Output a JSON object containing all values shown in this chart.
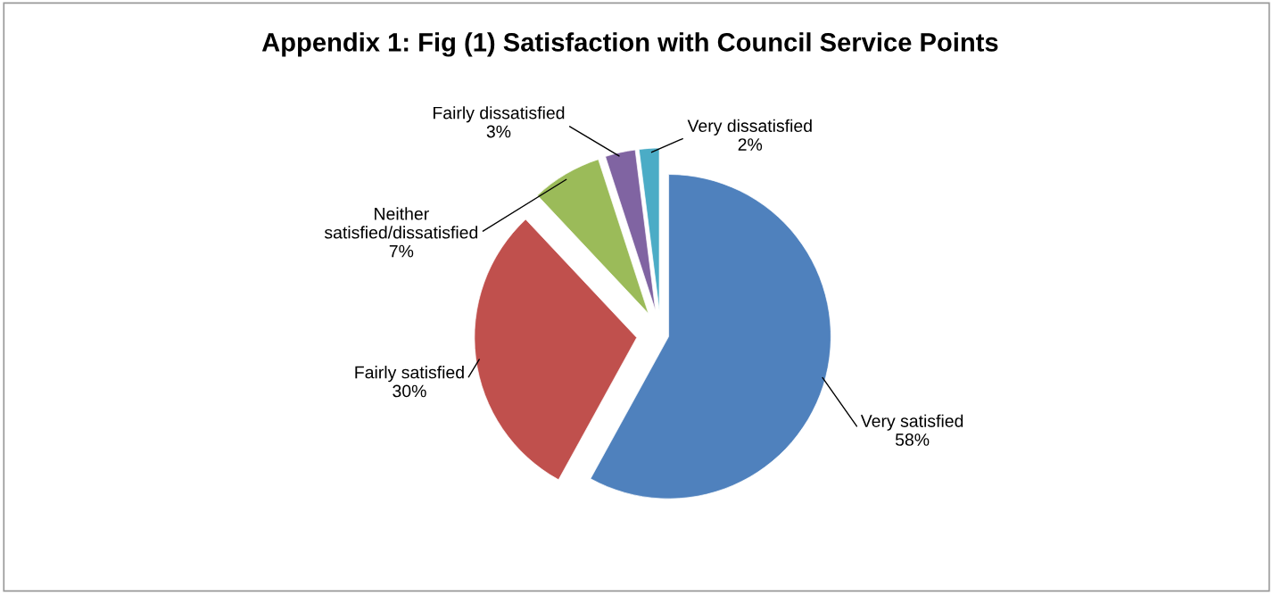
{
  "chart_data": {
    "type": "pie",
    "title": "Appendix 1: Fig (1) Satisfaction with Council Service Points",
    "categories": [
      "Very satisfied",
      "Fairly satisfied",
      "Neither\nsatisfied/dissatisfied",
      "Fairly dissatisfied",
      "Very dissatisfied"
    ],
    "values": [
      58,
      30,
      7,
      3,
      2
    ],
    "value_labels": [
      "58%",
      "30%",
      "7%",
      "3%",
      "2%"
    ],
    "colors": [
      "#4f81bd",
      "#c0504d",
      "#9bbb59",
      "#8064a2",
      "#4bacc6"
    ]
  }
}
